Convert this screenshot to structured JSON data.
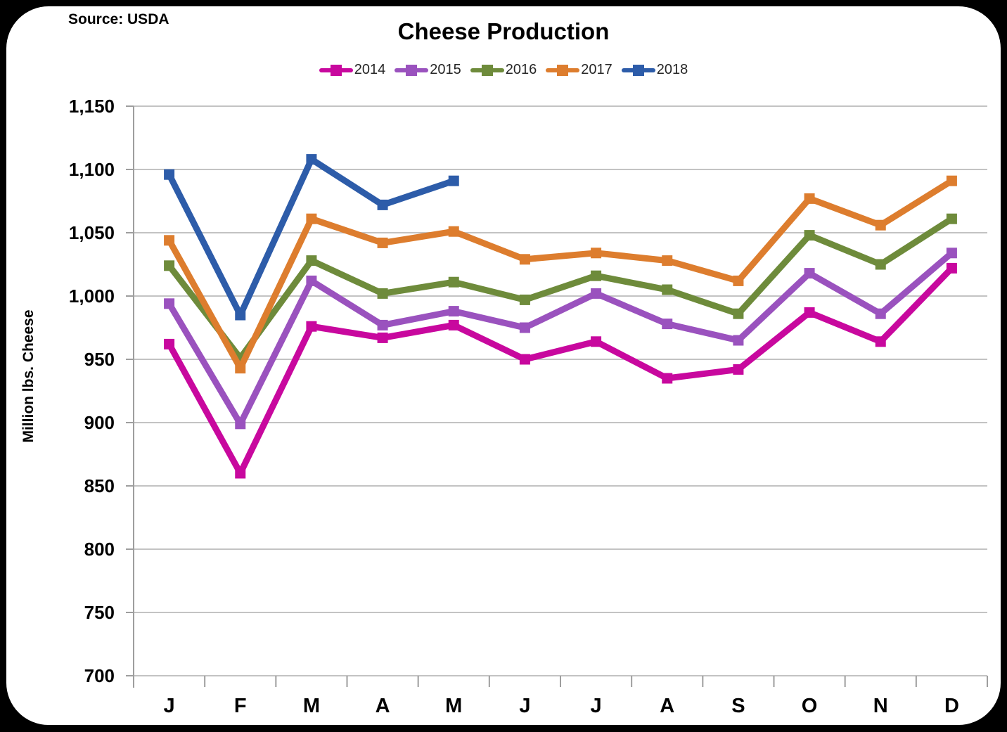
{
  "chart_data": {
    "type": "line",
    "title": "Cheese Production",
    "source": "Source: USDA",
    "xlabel": "",
    "ylabel": "Million lbs. Cheese",
    "categories": [
      "J",
      "F",
      "M",
      "A",
      "M",
      "J",
      "J",
      "A",
      "S",
      "O",
      "N",
      "D"
    ],
    "ylim": [
      700,
      1150
    ],
    "ytick_step": 50,
    "yticks": [
      700,
      750,
      800,
      850,
      900,
      950,
      1000,
      1050,
      1100,
      1150
    ],
    "ytick_labels": [
      "700",
      "750",
      "800",
      "850",
      "900",
      "950",
      "1,000",
      "1,050",
      "1,100",
      "1,150"
    ],
    "grid": true,
    "legend_position": "top",
    "series": [
      {
        "name": "2014",
        "color": "#C8089E",
        "values": [
          962,
          860,
          976,
          967,
          977,
          950,
          964,
          935,
          942,
          987,
          964,
          1022
        ]
      },
      {
        "name": "2015",
        "color": "#9A52BE",
        "values": [
          994,
          899,
          1012,
          977,
          988,
          975,
          1002,
          978,
          965,
          1018,
          986,
          1034
        ]
      },
      {
        "name": "2016",
        "color": "#6E8B3B",
        "values": [
          1024,
          951,
          1028,
          1002,
          1011,
          997,
          1016,
          1005,
          986,
          1048,
          1025,
          1061
        ]
      },
      {
        "name": "2017",
        "color": "#DD7D2E",
        "values": [
          1044,
          943,
          1061,
          1042,
          1051,
          1029,
          1034,
          1028,
          1012,
          1077,
          1056,
          1091
        ]
      },
      {
        "name": "2018",
        "color": "#2D5CA9",
        "values": [
          1096,
          985,
          1108,
          1072,
          1091,
          null,
          null,
          null,
          null,
          null,
          null,
          null
        ]
      }
    ]
  },
  "style": {
    "background": "#000000",
    "card_background": "#FFFFFF",
    "gridline_color": "#C3C3C3",
    "axis_color": "#9E9E9E",
    "text_color": "#000000"
  }
}
